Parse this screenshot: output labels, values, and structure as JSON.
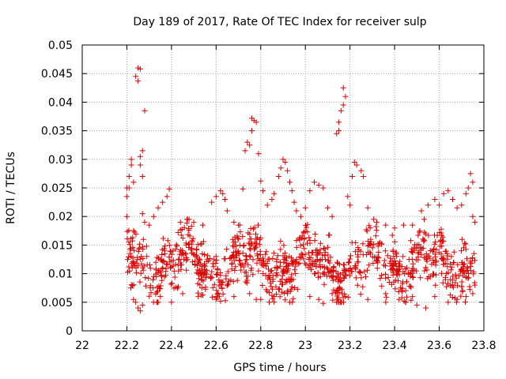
{
  "chart_data": {
    "type": "scatter",
    "title": "Day 189 of 2017, Rate Of TEC Index for receiver sulp",
    "xlabel": "GPS time / hours",
    "ylabel": "ROTI / TECUs",
    "xlim": [
      22,
      23.8
    ],
    "ylim": [
      0,
      0.05
    ],
    "xticks": [
      "22",
      "22.2",
      "22.4",
      "22.6",
      "22.8",
      "23",
      "23.2",
      "23.4",
      "23.6",
      "23.8"
    ],
    "yticks": [
      "0",
      "0.005",
      "0.01",
      "0.015",
      "0.02",
      "0.025",
      "0.03",
      "0.035",
      "0.04",
      "0.045",
      "0.05"
    ],
    "grid": true,
    "marker": "+",
    "series": [
      {
        "name": "ROTI",
        "color": "#dd0000",
        "points": [
          [
            22.2,
            0.025
          ],
          [
            22.2,
            0.0235
          ],
          [
            22.2,
            0.02
          ],
          [
            22.21,
            0.027
          ],
          [
            22.21,
            0.025
          ],
          [
            22.22,
            0.03
          ],
          [
            22.22,
            0.029
          ],
          [
            22.23,
            0.026
          ],
          [
            22.23,
            0.0175
          ],
          [
            22.24,
            0.0445
          ],
          [
            22.25,
            0.046
          ],
          [
            22.25,
            0.0437
          ],
          [
            22.26,
            0.0458
          ],
          [
            22.26,
            0.0305
          ],
          [
            22.26,
            0.029
          ],
          [
            22.27,
            0.0315
          ],
          [
            22.27,
            0.027
          ],
          [
            22.27,
            0.0205
          ],
          [
            22.28,
            0.0385
          ],
          [
            22.28,
            0.019
          ],
          [
            22.3,
            0.0185
          ],
          [
            22.32,
            0.02
          ],
          [
            22.34,
            0.0215
          ],
          [
            22.36,
            0.0225
          ],
          [
            22.38,
            0.0235
          ],
          [
            22.39,
            0.0248
          ],
          [
            22.44,
            0.019
          ],
          [
            22.47,
            0.0195
          ],
          [
            22.5,
            0.019
          ],
          [
            22.54,
            0.0185
          ],
          [
            22.58,
            0.0225
          ],
          [
            22.6,
            0.0235
          ],
          [
            22.62,
            0.0245
          ],
          [
            22.63,
            0.024
          ],
          [
            22.64,
            0.023
          ],
          [
            22.65,
            0.021
          ],
          [
            22.68,
            0.019
          ],
          [
            22.7,
            0.0185
          ],
          [
            22.72,
            0.0248
          ],
          [
            22.73,
            0.0315
          ],
          [
            22.74,
            0.033
          ],
          [
            22.75,
            0.0325
          ],
          [
            22.76,
            0.035
          ],
          [
            22.76,
            0.0372
          ],
          [
            22.77,
            0.0368
          ],
          [
            22.78,
            0.0365
          ],
          [
            22.79,
            0.031
          ],
          [
            22.8,
            0.0262
          ],
          [
            22.81,
            0.0245
          ],
          [
            22.83,
            0.022
          ],
          [
            22.85,
            0.023
          ],
          [
            22.86,
            0.024
          ],
          [
            22.88,
            0.027
          ],
          [
            22.89,
            0.0285
          ],
          [
            22.9,
            0.03
          ],
          [
            22.91,
            0.0295
          ],
          [
            22.92,
            0.028
          ],
          [
            22.93,
            0.026
          ],
          [
            22.94,
            0.0245
          ],
          [
            22.95,
            0.0225
          ],
          [
            22.96,
            0.021
          ],
          [
            22.98,
            0.02
          ],
          [
            23.0,
            0.0215
          ],
          [
            23.02,
            0.0245
          ],
          [
            23.04,
            0.026
          ],
          [
            23.06,
            0.0255
          ],
          [
            23.08,
            0.025
          ],
          [
            23.1,
            0.0215
          ],
          [
            23.12,
            0.02
          ],
          [
            23.14,
            0.0345
          ],
          [
            23.15,
            0.035
          ],
          [
            23.15,
            0.0365
          ],
          [
            23.16,
            0.0385
          ],
          [
            23.17,
            0.0395
          ],
          [
            23.17,
            0.0425
          ],
          [
            23.18,
            0.041
          ],
          [
            23.19,
            0.0235
          ],
          [
            23.2,
            0.022
          ],
          [
            23.21,
            0.027
          ],
          [
            23.22,
            0.0295
          ],
          [
            23.23,
            0.029
          ],
          [
            23.25,
            0.028
          ],
          [
            23.26,
            0.027
          ],
          [
            23.28,
            0.0215
          ],
          [
            23.32,
            0.019
          ],
          [
            23.36,
            0.0185
          ],
          [
            23.4,
            0.018
          ],
          [
            23.44,
            0.0185
          ],
          [
            23.48,
            0.0185
          ],
          [
            23.52,
            0.021
          ],
          [
            23.55,
            0.022
          ],
          [
            23.58,
            0.023
          ],
          [
            23.6,
            0.022
          ],
          [
            23.62,
            0.024
          ],
          [
            23.64,
            0.0245
          ],
          [
            23.66,
            0.023
          ],
          [
            23.68,
            0.0215
          ],
          [
            23.7,
            0.022
          ],
          [
            23.72,
            0.024
          ],
          [
            23.73,
            0.025
          ],
          [
            23.74,
            0.0275
          ],
          [
            23.75,
            0.026
          ],
          [
            23.75,
            0.02
          ],
          [
            23.76,
            0.019
          ],
          [
            22.23,
            0.0055
          ],
          [
            22.24,
            0.005
          ],
          [
            22.25,
            0.004
          ],
          [
            22.26,
            0.0035
          ],
          [
            22.27,
            0.0045
          ],
          [
            22.35,
            0.006
          ],
          [
            22.4,
            0.005
          ],
          [
            22.45,
            0.0065
          ],
          [
            22.52,
            0.006
          ],
          [
            22.6,
            0.0055
          ],
          [
            22.62,
            0.0052
          ],
          [
            22.68,
            0.006
          ],
          [
            22.75,
            0.0065
          ],
          [
            22.78,
            0.0055
          ],
          [
            22.8,
            0.0055
          ],
          [
            22.86,
            0.006
          ],
          [
            22.92,
            0.0065
          ],
          [
            23.02,
            0.006
          ],
          [
            23.06,
            0.0055
          ],
          [
            23.08,
            0.0048
          ],
          [
            23.12,
            0.0065
          ],
          [
            23.18,
            0.006
          ],
          [
            23.28,
            0.0055
          ],
          [
            23.36,
            0.0065
          ],
          [
            23.42,
            0.0055
          ],
          [
            23.48,
            0.006
          ],
          [
            23.5,
            0.0045
          ],
          [
            23.54,
            0.004
          ],
          [
            23.58,
            0.006
          ],
          [
            23.64,
            0.005
          ],
          [
            23.68,
            0.0055
          ],
          [
            23.72,
            0.006
          ],
          [
            23.75,
            0.0065
          ]
        ]
      }
    ],
    "band_seed": 189
  }
}
